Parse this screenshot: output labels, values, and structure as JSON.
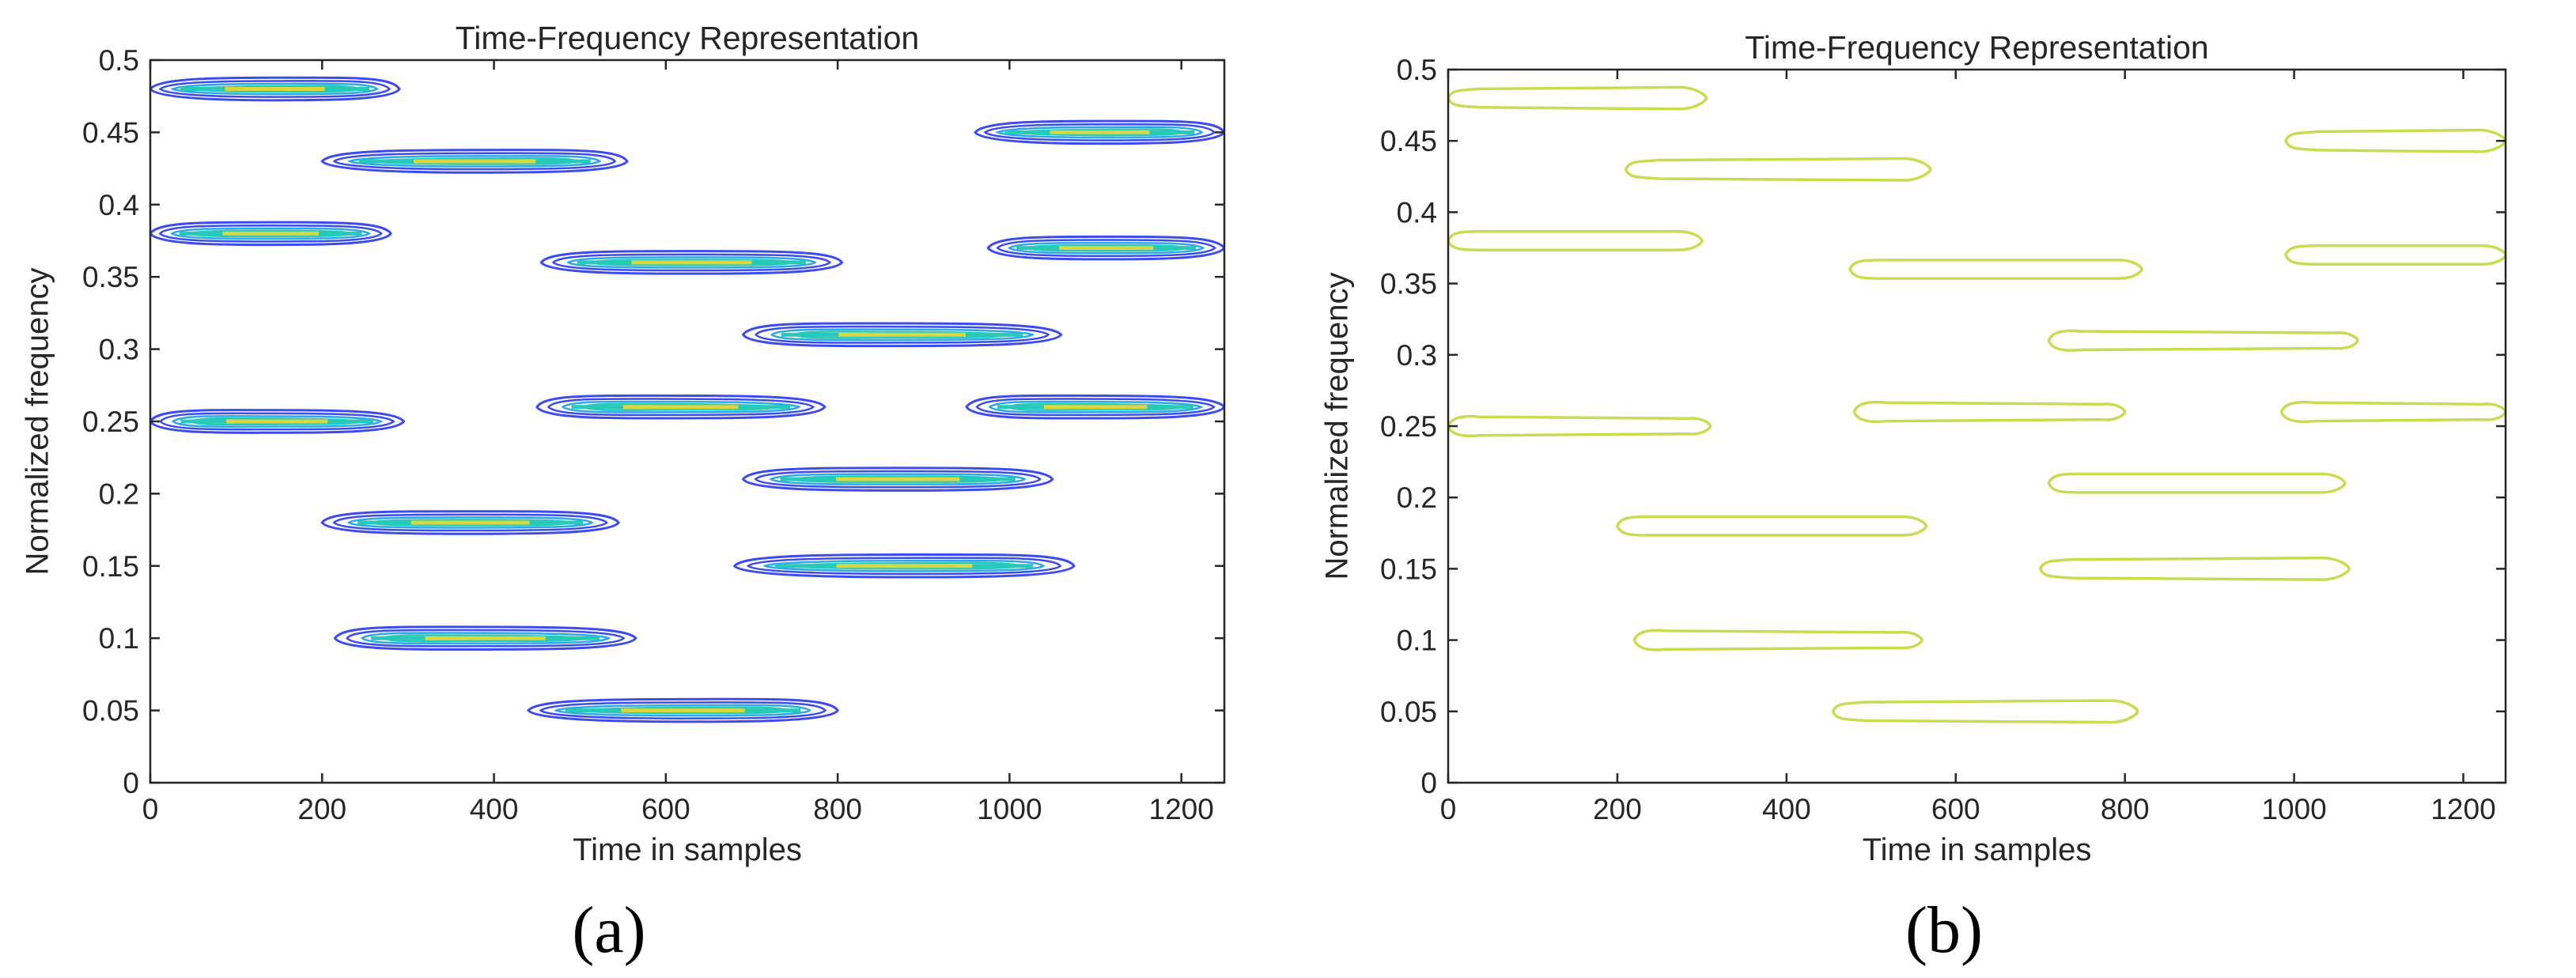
{
  "chart_data": [
    {
      "type": "contour",
      "panel": "a",
      "title": "Time-Frequency Representation",
      "xlabel": "Time in samples",
      "ylabel": "Normalized frequency",
      "xlim": [
        0,
        1250
      ],
      "ylim": [
        0,
        0.5
      ],
      "xticks": [
        0,
        200,
        400,
        600,
        800,
        1000,
        1200
      ],
      "xtick_labels": [
        "0",
        "200",
        "400",
        "600",
        "800",
        "1000",
        "1200"
      ],
      "yticks": [
        0,
        0.05,
        0.1,
        0.15,
        0.2,
        0.25,
        0.3,
        0.35,
        0.4,
        0.45,
        0.5
      ],
      "ytick_labels": [
        "0",
        "0.05",
        "0.1",
        "0.15",
        "0.2",
        "0.25",
        "0.3",
        "0.35",
        "0.4",
        "0.45",
        "0.5"
      ],
      "contour_style": "multi-level (blue outer, cyan inner, yellow core)",
      "contour_colors": [
        "#3b4bf0",
        "#2aa8e8",
        "#27c9b9",
        "#d9d640"
      ],
      "components": [
        {
          "t_start": 0,
          "t_end": 290,
          "freq": 0.48
        },
        {
          "t_start": 0,
          "t_end": 280,
          "freq": 0.38
        },
        {
          "t_start": 0,
          "t_end": 295,
          "freq": 0.25
        },
        {
          "t_start": 200,
          "t_end": 555,
          "freq": 0.43
        },
        {
          "t_start": 200,
          "t_end": 545,
          "freq": 0.18
        },
        {
          "t_start": 215,
          "t_end": 565,
          "freq": 0.1
        },
        {
          "t_start": 440,
          "t_end": 800,
          "freq": 0.05
        },
        {
          "t_start": 455,
          "t_end": 805,
          "freq": 0.36
        },
        {
          "t_start": 450,
          "t_end": 785,
          "freq": 0.26
        },
        {
          "t_start": 680,
          "t_end": 1075,
          "freq": 0.15
        },
        {
          "t_start": 690,
          "t_end": 1050,
          "freq": 0.21
        },
        {
          "t_start": 690,
          "t_end": 1060,
          "freq": 0.31
        },
        {
          "t_start": 960,
          "t_end": 1250,
          "freq": 0.45
        },
        {
          "t_start": 975,
          "t_end": 1250,
          "freq": 0.37
        },
        {
          "t_start": 950,
          "t_end": 1250,
          "freq": 0.26
        }
      ]
    },
    {
      "type": "contour",
      "panel": "b",
      "title": "Time-Frequency Representation",
      "xlabel": "Time in samples",
      "ylabel": "Normalized frequency",
      "xlim": [
        0,
        1250
      ],
      "ylim": [
        0,
        0.5
      ],
      "xticks": [
        0,
        200,
        400,
        600,
        800,
        1000,
        1200
      ],
      "xtick_labels": [
        "0",
        "200",
        "400",
        "600",
        "800",
        "1000",
        "1200"
      ],
      "yticks": [
        0,
        0.05,
        0.1,
        0.15,
        0.2,
        0.25,
        0.3,
        0.35,
        0.4,
        0.45,
        0.5
      ],
      "ytick_labels": [
        "0",
        "0.05",
        "0.1",
        "0.15",
        "0.2",
        "0.25",
        "0.3",
        "0.35",
        "0.4",
        "0.45",
        "0.5"
      ],
      "contour_style": "single-level outline",
      "contour_colors": [
        "#c8dc50"
      ],
      "components": [
        {
          "t_start": 0,
          "t_end": 305,
          "freq": 0.48
        },
        {
          "t_start": 0,
          "t_end": 300,
          "freq": 0.38
        },
        {
          "t_start": 0,
          "t_end": 310,
          "freq": 0.25
        },
        {
          "t_start": 210,
          "t_end": 570,
          "freq": 0.43
        },
        {
          "t_start": 200,
          "t_end": 565,
          "freq": 0.18
        },
        {
          "t_start": 220,
          "t_end": 560,
          "freq": 0.1
        },
        {
          "t_start": 455,
          "t_end": 815,
          "freq": 0.05
        },
        {
          "t_start": 475,
          "t_end": 820,
          "freq": 0.36
        },
        {
          "t_start": 480,
          "t_end": 800,
          "freq": 0.26
        },
        {
          "t_start": 700,
          "t_end": 1065,
          "freq": 0.15
        },
        {
          "t_start": 710,
          "t_end": 1060,
          "freq": 0.21
        },
        {
          "t_start": 710,
          "t_end": 1075,
          "freq": 0.31
        },
        {
          "t_start": 990,
          "t_end": 1250,
          "freq": 0.45
        },
        {
          "t_start": 990,
          "t_end": 1250,
          "freq": 0.37
        },
        {
          "t_start": 985,
          "t_end": 1250,
          "freq": 0.26
        }
      ]
    }
  ],
  "captions": [
    "(a)",
    "(b)"
  ]
}
